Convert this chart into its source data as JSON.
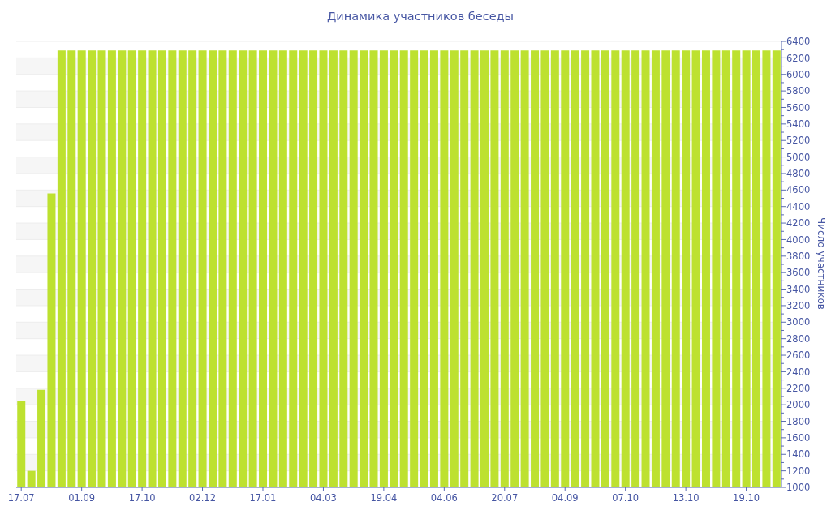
{
  "chart_data": {
    "type": "bar",
    "title": "Динамика участников беседы",
    "ylabel": "Число участников",
    "categories": [
      "17.07",
      null,
      null,
      null,
      null,
      null,
      "01.09",
      null,
      null,
      null,
      null,
      null,
      "17.10",
      null,
      null,
      null,
      null,
      null,
      "02.12",
      null,
      null,
      null,
      null,
      null,
      "17.01",
      null,
      null,
      null,
      null,
      null,
      "04.03",
      null,
      null,
      null,
      null,
      null,
      "19.04",
      null,
      null,
      null,
      null,
      null,
      "04.06",
      null,
      null,
      null,
      null,
      null,
      "20.07",
      null,
      null,
      null,
      null,
      null,
      "04.09",
      null,
      null,
      null,
      null,
      null,
      "07.10",
      null,
      null,
      null,
      null,
      null,
      "13.10",
      null,
      null,
      null,
      null,
      null,
      "19.10",
      null,
      null,
      null
    ],
    "values": [
      2040,
      1200,
      2180,
      4560,
      6290,
      6290,
      6290,
      6290,
      6290,
      6290,
      6290,
      6290,
      6290,
      6290,
      6290,
      6290,
      6290,
      6290,
      6290,
      6290,
      6290,
      6290,
      6290,
      6290,
      6290,
      6290,
      6290,
      6290,
      6290,
      6290,
      6290,
      6290,
      6290,
      6290,
      6290,
      6290,
      6290,
      6290,
      6290,
      6290,
      6290,
      6290,
      6290,
      6290,
      6290,
      6290,
      6290,
      6290,
      6290,
      6290,
      6290,
      6290,
      6290,
      6290,
      6290,
      6290,
      6290,
      6290,
      6290,
      6290,
      6290,
      6290,
      6290,
      6290,
      6290,
      6290,
      6290,
      6290,
      6290,
      6290,
      6290,
      6290,
      6290,
      6290,
      6290,
      6290
    ],
    "color": "#bde130",
    "ylim": [
      1000,
      6400
    ],
    "yticks": [
      1000,
      {
        "value": 1100,
        "label": null
      },
      1200,
      {
        "value": 1300,
        "label": null
      },
      1400,
      {
        "value": 1500,
        "label": null
      },
      1600,
      {
        "value": 1700,
        "label": null
      },
      1800,
      {
        "value": 1900,
        "label": null
      },
      2000,
      {
        "value": 2100,
        "label": null
      },
      2200,
      {
        "value": 2300,
        "label": null
      },
      2400,
      {
        "value": 2500,
        "label": null
      },
      2600,
      {
        "value": 2700,
        "label": null
      },
      2800,
      {
        "value": 2900,
        "label": null
      },
      3000,
      {
        "value": 3100,
        "label": null
      },
      3200,
      {
        "value": 3300,
        "label": null
      },
      3400,
      {
        "value": 3500,
        "label": null
      },
      3600,
      {
        "value": 3700,
        "label": null
      },
      3800,
      {
        "value": 3900,
        "label": null
      },
      4000,
      {
        "value": 4100,
        "label": null
      },
      4200,
      {
        "value": 4300,
        "label": null
      },
      4400,
      {
        "value": 4500,
        "label": null
      },
      4600,
      {
        "value": 4700,
        "label": null
      },
      4800,
      {
        "value": 4900,
        "label": null
      },
      5000,
      {
        "value": 5100,
        "label": null
      },
      5200,
      {
        "value": 5300,
        "label": null
      },
      5400,
      {
        "value": 5500,
        "label": null
      },
      5600,
      {
        "value": 5700,
        "label": null
      },
      5800,
      {
        "value": 5900,
        "label": null
      },
      6000,
      {
        "value": 6100,
        "label": null
      },
      6200,
      {
        "value": 6300,
        "label": null
      },
      6400
    ],
    "grid": "y"
  }
}
